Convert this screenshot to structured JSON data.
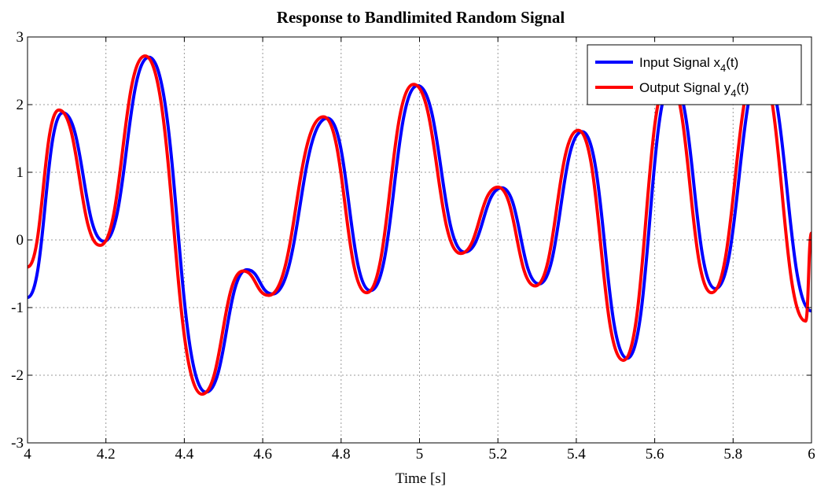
{
  "chart_data": {
    "type": "line",
    "title": "Response to Bandlimited Random Signal",
    "xlabel": "Time [s]",
    "ylabel": "",
    "xlim": [
      4,
      6
    ],
    "ylim": [
      -3,
      3
    ],
    "xticks": [
      4,
      4.2,
      4.4,
      4.6,
      4.8,
      5,
      5.2,
      5.4,
      5.6,
      5.8,
      6
    ],
    "xtick_labels": [
      "4",
      "4.2",
      "4.4",
      "4.6",
      "4.8",
      "5",
      "5.2",
      "5.4",
      "5.6",
      "5.8",
      "6"
    ],
    "yticks": [
      -3,
      -2,
      -1,
      0,
      1,
      2,
      3
    ],
    "ytick_labels": [
      "-3",
      "-2",
      "-1",
      "0",
      "1",
      "2",
      "3"
    ],
    "grid": true,
    "legend_position": "top-right",
    "series": [
      {
        "name_base": "Input Signal x",
        "name_sub": "4",
        "name_tail": "(t)",
        "color": "#0000ff",
        "points": [
          [
            4.0,
            -0.85
          ],
          [
            4.09,
            1.88
          ],
          [
            4.195,
            -0.02
          ],
          [
            4.31,
            2.7
          ],
          [
            4.455,
            -2.25
          ],
          [
            4.56,
            -0.44
          ],
          [
            4.625,
            -0.8
          ],
          [
            4.765,
            1.8
          ],
          [
            4.875,
            -0.75
          ],
          [
            4.995,
            2.28
          ],
          [
            5.115,
            -0.18
          ],
          [
            5.21,
            0.77
          ],
          [
            5.305,
            -0.65
          ],
          [
            5.415,
            1.6
          ],
          [
            5.53,
            -1.75
          ],
          [
            5.645,
            2.35
          ],
          [
            5.755,
            -0.72
          ],
          [
            5.875,
            2.55
          ],
          [
            6.0,
            -1.05
          ]
        ]
      },
      {
        "name_base": "Output Signal y",
        "name_sub": "4",
        "name_tail": "(t)",
        "color": "#ff0000",
        "points": [
          [
            4.0,
            -0.4
          ],
          [
            4.08,
            1.92
          ],
          [
            4.185,
            -0.08
          ],
          [
            4.3,
            2.72
          ],
          [
            4.445,
            -2.28
          ],
          [
            4.55,
            -0.46
          ],
          [
            4.615,
            -0.82
          ],
          [
            4.755,
            1.82
          ],
          [
            4.865,
            -0.78
          ],
          [
            4.985,
            2.3
          ],
          [
            5.105,
            -0.2
          ],
          [
            5.2,
            0.78
          ],
          [
            5.295,
            -0.68
          ],
          [
            5.405,
            1.62
          ],
          [
            5.52,
            -1.78
          ],
          [
            5.635,
            2.38
          ],
          [
            5.745,
            -0.78
          ],
          [
            5.865,
            2.58
          ],
          [
            5.985,
            -1.2
          ],
          [
            6.0,
            0.1
          ]
        ]
      }
    ]
  }
}
